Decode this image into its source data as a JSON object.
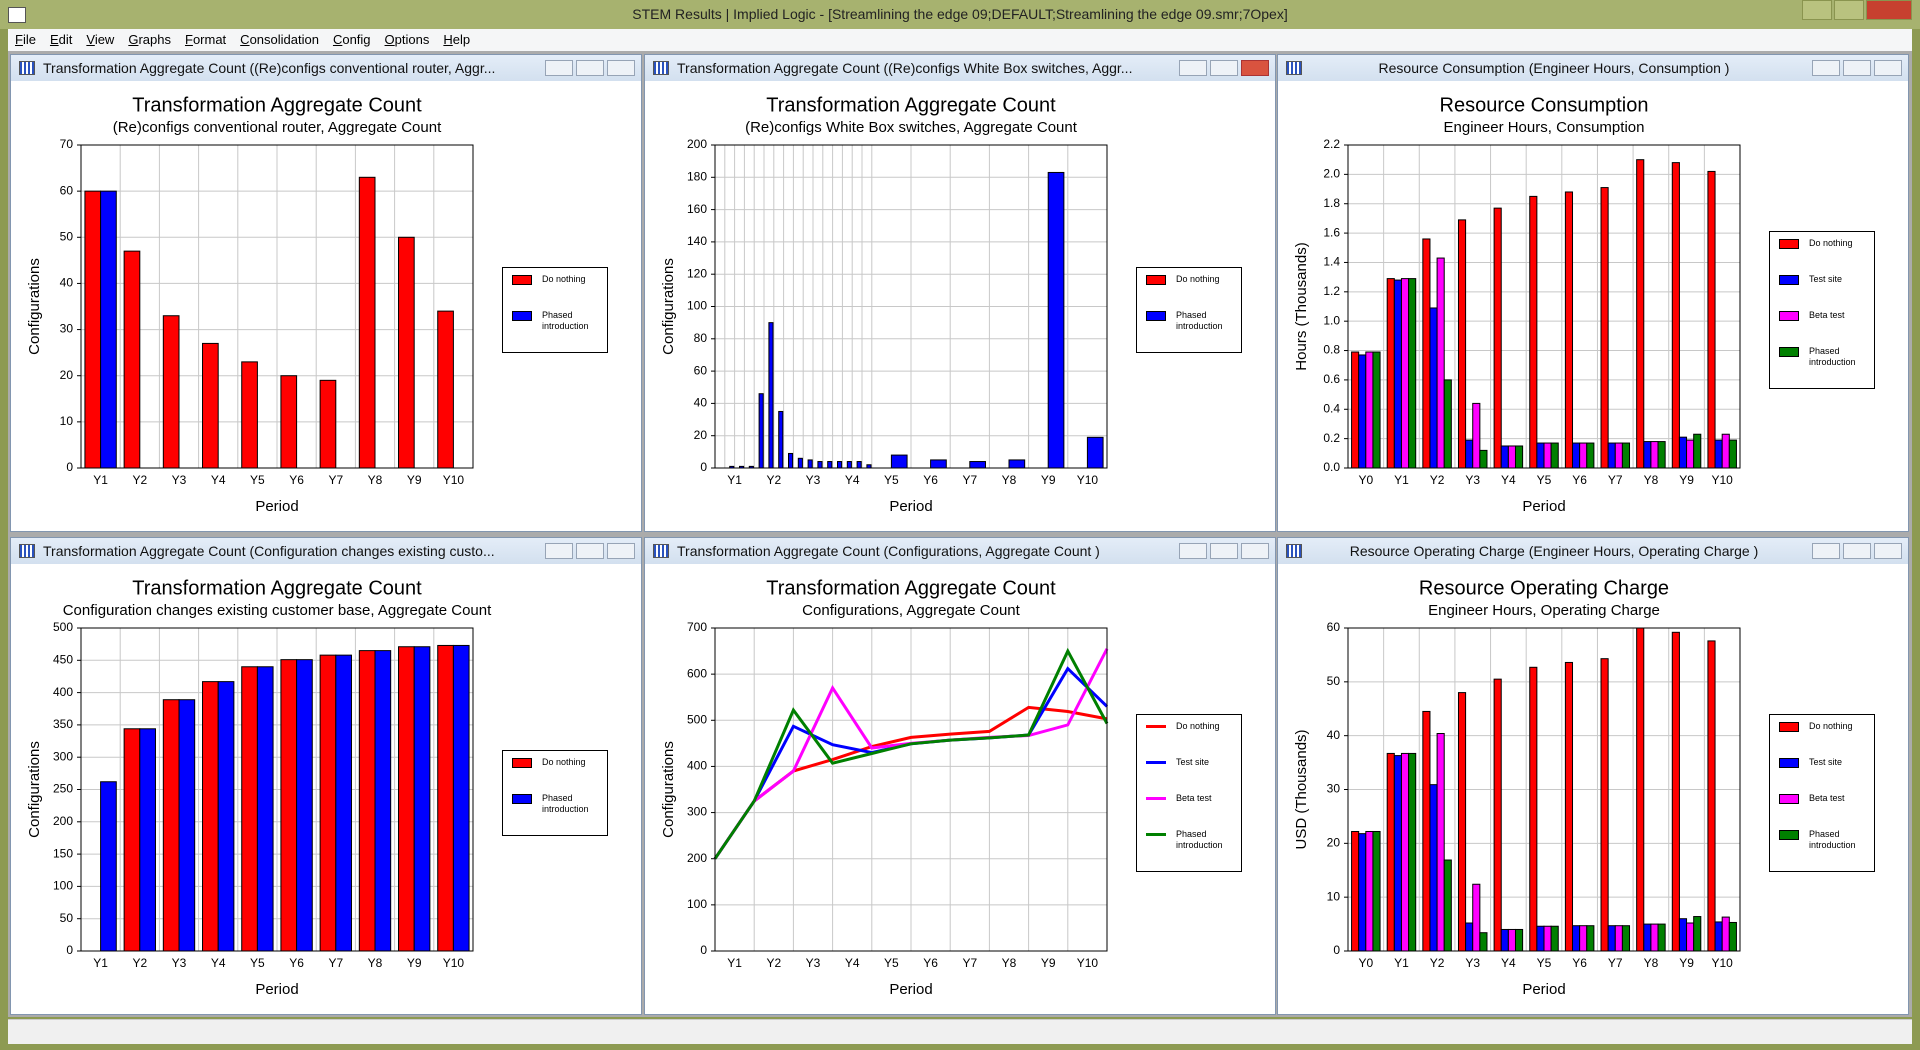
{
  "window": {
    "title": "STEM Results | Implied Logic - [Streamlining the edge 09;DEFAULT;Streamlining the edge 09.smr;7Opex]",
    "menu": [
      "File",
      "Edit",
      "View",
      "Graphs",
      "Format",
      "Consolidation",
      "Config",
      "Options",
      "Help"
    ]
  },
  "panels": [
    {
      "title": "Transformation Aggregate Count ((Re)configs conventional router, Aggr..."
    },
    {
      "title": "Transformation Aggregate Count ((Re)configs White Box switches, Aggr..."
    },
    {
      "title": "Resource Consumption (Engineer Hours, Consumption )"
    },
    {
      "title": "Transformation Aggregate Count (Configuration changes existing custo..."
    },
    {
      "title": "Transformation Aggregate Count (Configurations, Aggregate Count )"
    },
    {
      "title": "Resource Operating Charge (Engineer Hours, Operating Charge )"
    }
  ],
  "chart_data": [
    {
      "type": "bar",
      "title": "Transformation Aggregate Count",
      "subtitle": "(Re)configs conventional router, Aggregate Count",
      "xlabel": "Period",
      "ylabel": "Configurations",
      "categories": [
        "Y1",
        "Y2",
        "Y3",
        "Y4",
        "Y5",
        "Y6",
        "Y7",
        "Y8",
        "Y9",
        "Y10"
      ],
      "series": [
        {
          "name": "Do nothing",
          "color": "#ff0000",
          "values": [
            60,
            47,
            33,
            27,
            23,
            20,
            19,
            63,
            50,
            34
          ]
        },
        {
          "name": "Phased introduction",
          "color": "#0000ff",
          "values": [
            60,
            null,
            null,
            null,
            null,
            null,
            null,
            null,
            null,
            null
          ]
        }
      ],
      "ylim": [
        0,
        70
      ],
      "yticks": [
        0,
        10,
        20,
        30,
        40,
        50,
        60,
        70
      ],
      "grid": true
    },
    {
      "type": "bar",
      "title": "Transformation Aggregate Count",
      "subtitle": "(Re)configs White Box switches, Aggregate Count",
      "xlabel": "Period",
      "ylabel": "Configurations",
      "categories": [
        "Y1",
        "Y2",
        "Y3",
        "Y4",
        "Y5",
        "Y6",
        "Y7",
        "Y8",
        "Y9",
        "Y10"
      ],
      "series": [
        {
          "name": "Do nothing",
          "color": "#ff0000",
          "values": [
            [
              null,
              null,
              null,
              null
            ],
            [
              null,
              null,
              null,
              null
            ],
            [
              null,
              null,
              null,
              null
            ],
            [
              null,
              null,
              null,
              null
            ],
            null,
            null,
            null,
            null,
            null,
            null
          ]
        },
        {
          "name": "Phased introduction",
          "color": "#0000ff",
          "values": [
            [
              0,
              1,
              1,
              1
            ],
            [
              46,
              90,
              35,
              9
            ],
            [
              6,
              5,
              4,
              4
            ],
            [
              4,
              4,
              4,
              2
            ],
            8,
            5,
            4,
            5,
            183,
            19
          ]
        }
      ],
      "ylim": [
        0,
        200
      ],
      "yticks": [
        0,
        20,
        40,
        60,
        80,
        100,
        120,
        140,
        160,
        180,
        200
      ],
      "grid": true
    },
    {
      "type": "bar",
      "title": "Resource Consumption",
      "subtitle": "Engineer Hours, Consumption",
      "xlabel": "Period",
      "ylabel": "Hours  (Thousands)",
      "categories": [
        "Y0",
        "Y1",
        "Y2",
        "Y3",
        "Y4",
        "Y5",
        "Y6",
        "Y7",
        "Y8",
        "Y9",
        "Y10"
      ],
      "series": [
        {
          "name": "Do nothing",
          "color": "#ff0000",
          "values": [
            0.79,
            1.29,
            1.56,
            1.69,
            1.77,
            1.85,
            1.88,
            1.91,
            2.1,
            2.08,
            2.02
          ]
        },
        {
          "name": "Test site",
          "color": "#0000ff",
          "values": [
            0.77,
            1.28,
            1.09,
            0.19,
            0.15,
            0.17,
            0.17,
            0.17,
            0.18,
            0.21,
            0.19
          ]
        },
        {
          "name": "Beta test",
          "color": "#ff00ff",
          "values": [
            0.79,
            1.29,
            1.43,
            0.44,
            0.15,
            0.17,
            0.17,
            0.17,
            0.18,
            0.19,
            0.23
          ]
        },
        {
          "name": "Phased introduction",
          "color": "#008000",
          "values": [
            0.79,
            1.29,
            0.6,
            0.12,
            0.15,
            0.17,
            0.17,
            0.17,
            0.18,
            0.23,
            0.19
          ]
        }
      ],
      "ylim": [
        0,
        2.2
      ],
      "yticks": [
        {
          "value": 0,
          "label": "0.0"
        },
        0.2,
        0.4,
        0.6,
        0.8,
        {
          "value": 1,
          "label": "1.0"
        },
        1.2,
        1.4,
        1.6,
        1.8,
        {
          "value": 2,
          "label": "2.0"
        },
        2.2
      ],
      "grid": true
    },
    {
      "type": "bar",
      "title": "Transformation Aggregate Count",
      "subtitle": "Configuration changes existing customer base, Aggregate Count",
      "xlabel": "Period",
      "ylabel": "Configurations",
      "categories": [
        "Y1",
        "Y2",
        "Y3",
        "Y4",
        "Y5",
        "Y6",
        "Y7",
        "Y8",
        "Y9",
        "Y10"
      ],
      "series": [
        {
          "name": "Do nothing",
          "color": "#ff0000",
          "values": [
            null,
            344,
            389,
            417,
            440,
            451,
            458,
            465,
            471,
            473
          ]
        },
        {
          "name": "Phased introduction",
          "color": "#0000ff",
          "values": [
            262,
            344,
            389,
            417,
            440,
            451,
            458,
            465,
            471,
            473
          ]
        }
      ],
      "ylim": [
        0,
        500
      ],
      "yticks": [
        0,
        50,
        100,
        150,
        200,
        250,
        300,
        350,
        400,
        450,
        500
      ],
      "grid": true
    },
    {
      "type": "line",
      "title": "Transformation Aggregate Count",
      "subtitle": "Configurations, Aggregate Count",
      "xlabel": "Period",
      "ylabel": "Configurations",
      "categories": [
        null,
        "Y1",
        "Y2",
        "Y3",
        "Y4",
        "Y5",
        "Y6",
        "Y7",
        "Y8",
        "Y9",
        "Y10"
      ],
      "series": [
        {
          "name": "Do nothing",
          "color": "#ff0000",
          "values": [
            200,
            325,
            390,
            415,
            443,
            463,
            470,
            476,
            528,
            519,
            503
          ]
        },
        {
          "name": "Test site",
          "color": "#0000ff",
          "values": [
            200,
            325,
            487,
            447,
            430,
            449,
            457,
            462,
            468,
            612,
            530
          ]
        },
        {
          "name": "Beta test",
          "color": "#ff00ff",
          "values": [
            200,
            325,
            390,
            570,
            440,
            450,
            457,
            463,
            467,
            490,
            655
          ]
        },
        {
          "name": "Phased introduction",
          "color": "#008000",
          "values": [
            200,
            325,
            522,
            407,
            428,
            449,
            457,
            462,
            468,
            650,
            493
          ]
        }
      ],
      "ylim": [
        0,
        700
      ],
      "yticks": [
        0,
        100,
        200,
        300,
        400,
        500,
        600,
        700
      ],
      "grid": true
    },
    {
      "type": "bar",
      "title": "Resource Operating Charge",
      "subtitle": "Engineer Hours, Operating Charge",
      "xlabel": "Period",
      "ylabel": "USD  (Thousands)",
      "categories": [
        "Y0",
        "Y1",
        "Y2",
        "Y3",
        "Y4",
        "Y5",
        "Y6",
        "Y7",
        "Y8",
        "Y9",
        "Y10"
      ],
      "series": [
        {
          "name": "Do nothing",
          "color": "#ff0000",
          "values": [
            22.2,
            36.7,
            44.5,
            48,
            50.5,
            52.7,
            53.6,
            54.3,
            60,
            59.2,
            57.6
          ]
        },
        {
          "name": "Test site",
          "color": "#0000ff",
          "values": [
            21.8,
            36.3,
            30.9,
            5.2,
            4,
            4.6,
            4.7,
            4.7,
            5,
            6,
            5.4
          ]
        },
        {
          "name": "Beta test",
          "color": "#ff00ff",
          "values": [
            22.2,
            36.7,
            40.4,
            12.4,
            4,
            4.6,
            4.7,
            4.7,
            5,
            5.2,
            6.3
          ]
        },
        {
          "name": "Phased introduction",
          "color": "#008000",
          "values": [
            22.2,
            36.7,
            16.9,
            3.4,
            4,
            4.6,
            4.7,
            4.7,
            5,
            6.4,
            5.3
          ]
        }
      ],
      "ylim": [
        0,
        60
      ],
      "yticks": [
        0,
        10,
        20,
        30,
        40,
        50,
        60
      ],
      "grid": true
    }
  ]
}
